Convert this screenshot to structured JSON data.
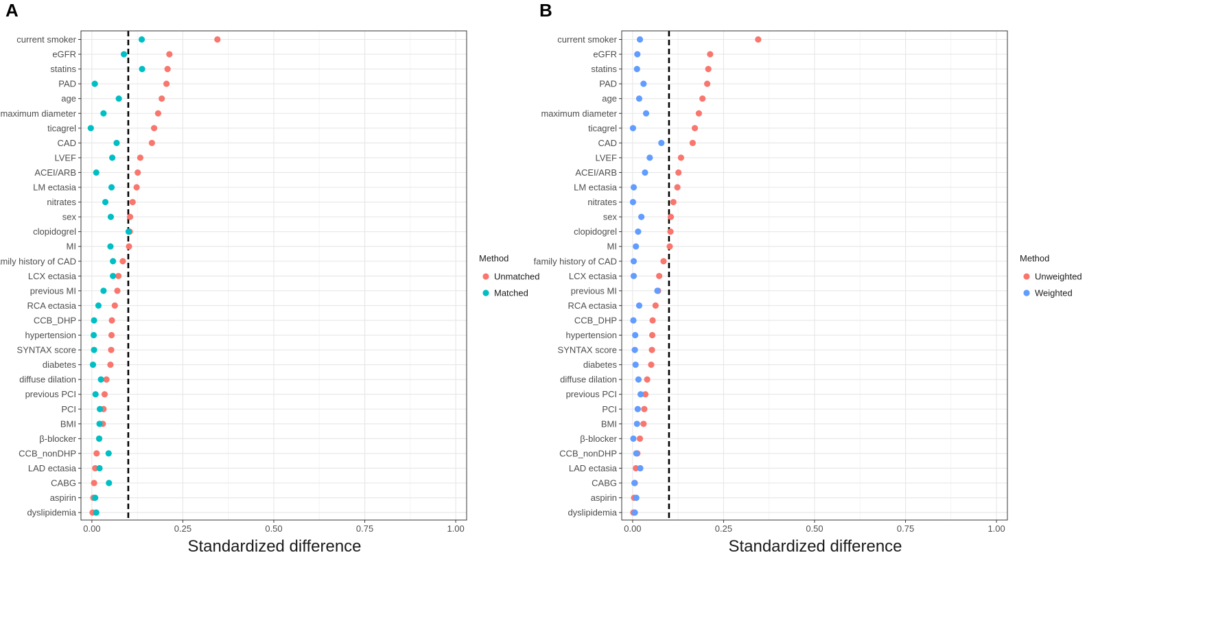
{
  "chart_data": [
    {
      "panel": "A",
      "type": "scatter",
      "xlabel": "Standardized difference",
      "xlim": [
        -0.03,
        1.03
      ],
      "xticks": [
        0.0,
        0.25,
        0.5,
        0.75,
        1.0
      ],
      "xtick_labels": [
        "0.00",
        "0.25",
        "0.50",
        "0.75",
        "1.00"
      ],
      "threshold": 0.1,
      "legend_title": "Method",
      "categories": [
        "current smoker",
        "eGFR",
        "statins",
        "PAD",
        "age",
        "maximum diameter",
        "ticagrel",
        "CAD",
        "LVEF",
        "ACEI/ARB",
        "LM ectasia",
        "nitrates",
        "sex",
        "clopidogrel",
        "MI",
        "family history of CAD",
        "LCX ectasia",
        "previous MI",
        "RCA ectasia",
        "CCB_DHP",
        "hypertension",
        "SYNTAX score",
        "diabetes",
        "diffuse dilation",
        "previous PCI",
        "PCI",
        "BMI",
        "β-blocker",
        "CCB_nonDHP",
        "LAD ectasia",
        "CABG",
        "aspirin",
        "dyslipidemia"
      ],
      "series": [
        {
          "name": "Unmatched",
          "color": "#F8766D",
          "values": [
            0.345,
            0.213,
            0.208,
            0.205,
            0.192,
            0.182,
            0.171,
            0.165,
            0.133,
            0.126,
            0.123,
            0.112,
            0.105,
            0.104,
            0.102,
            0.085,
            0.073,
            0.07,
            0.063,
            0.055,
            0.054,
            0.053,
            0.051,
            0.04,
            0.035,
            0.032,
            0.03,
            0.02,
            0.013,
            0.009,
            0.006,
            0.004,
            0.002
          ]
        },
        {
          "name": "Matched",
          "color": "#00BFC4",
          "values": [
            0.137,
            0.088,
            0.138,
            0.008,
            0.074,
            0.032,
            -0.003,
            0.068,
            0.056,
            0.012,
            0.054,
            0.037,
            0.052,
            0.101,
            0.051,
            0.058,
            0.058,
            0.032,
            0.018,
            0.006,
            0.005,
            0.006,
            0.003,
            0.025,
            0.01,
            0.022,
            0.021,
            0.02,
            0.046,
            0.021,
            0.047,
            0.009,
            0.012
          ]
        }
      ]
    },
    {
      "panel": "B",
      "type": "scatter",
      "xlabel": "Standardized difference",
      "xlim": [
        -0.03,
        1.03
      ],
      "xticks": [
        0.0,
        0.25,
        0.5,
        0.75,
        1.0
      ],
      "xtick_labels": [
        "0.00",
        "0.25",
        "0.50",
        "0.75",
        "1.00"
      ],
      "threshold": 0.1,
      "legend_title": "Method",
      "categories": [
        "current smoker",
        "eGFR",
        "statins",
        "PAD",
        "age",
        "maximum diameter",
        "ticagrel",
        "CAD",
        "LVEF",
        "ACEI/ARB",
        "LM ectasia",
        "nitrates",
        "sex",
        "clopidogrel",
        "MI",
        "family history of CAD",
        "LCX ectasia",
        "previous MI",
        "RCA ectasia",
        "CCB_DHP",
        "hypertension",
        "SYNTAX score",
        "diabetes",
        "diffuse dilation",
        "previous PCI",
        "PCI",
        "BMI",
        "β-blocker",
        "CCB_nonDHP",
        "LAD ectasia",
        "CABG",
        "aspirin",
        "dyslipidemia"
      ],
      "series": [
        {
          "name": "Unweighted",
          "color": "#F8766D",
          "values": [
            0.345,
            0.213,
            0.208,
            0.205,
            0.192,
            0.182,
            0.171,
            0.165,
            0.133,
            0.126,
            0.123,
            0.112,
            0.105,
            0.104,
            0.102,
            0.085,
            0.073,
            0.07,
            0.063,
            0.055,
            0.054,
            0.053,
            0.051,
            0.04,
            0.035,
            0.032,
            0.03,
            0.02,
            0.013,
            0.009,
            0.006,
            0.004,
            0.002
          ]
        },
        {
          "name": "Weighted",
          "color": "#619CFF",
          "values": [
            0.02,
            0.013,
            0.012,
            0.03,
            0.018,
            0.037,
            0.001,
            0.079,
            0.047,
            0.034,
            0.003,
            0.001,
            0.024,
            0.015,
            0.009,
            0.003,
            0.003,
            0.068,
            0.018,
            0.002,
            0.007,
            0.006,
            0.008,
            0.016,
            0.022,
            0.014,
            0.012,
            0.002,
            0.01,
            0.021,
            0.005,
            0.01,
            0.006
          ]
        }
      ]
    }
  ]
}
